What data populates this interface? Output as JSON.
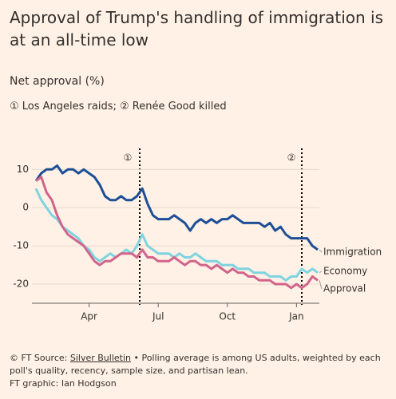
{
  "chart_data": {
    "type": "line",
    "title": "Approval of Trump's handling of immigration is at an all-time low",
    "subtitle": "Net approval (%)",
    "note": "① Los Angeles raids; ② Renée Good killed",
    "markers": [
      "①",
      "②"
    ],
    "categories": [
      null,
      null,
      null,
      null,
      null,
      null,
      null,
      null,
      null,
      null,
      "Apr",
      null,
      null,
      null,
      null,
      null,
      null,
      null,
      null,
      null,
      null,
      null,
      null,
      "Jul",
      null,
      null,
      null,
      null,
      null,
      null,
      null,
      null,
      null,
      null,
      null,
      null,
      "Oct",
      null,
      null,
      null,
      null,
      null,
      null,
      null,
      null,
      null,
      null,
      null,
      null,
      "Jan",
      null,
      null,
      null,
      null
    ],
    "series": [
      {
        "name": "Immigration",
        "color": "#1d4f96",
        "values": [
          7,
          9,
          10,
          10,
          11,
          9,
          10,
          10,
          9,
          10,
          9,
          8,
          6,
          3,
          2,
          2,
          3,
          2,
          2,
          3,
          5,
          1,
          -2,
          -3,
          -3,
          -3,
          -2,
          -3,
          -4,
          -6,
          -4,
          -3,
          -4,
          -3,
          -4,
          -3,
          -3,
          -2,
          -3,
          -4,
          -4,
          -4,
          -4,
          -5,
          -4,
          -6,
          -5,
          -7,
          -8,
          -8,
          -8,
          -8,
          -10,
          -11
        ]
      },
      {
        "name": "Economy",
        "color": "#7fd3df",
        "values": [
          5,
          2,
          0,
          -2,
          -3,
          -5,
          -6,
          -7,
          -8,
          -10,
          -11,
          -13,
          -14,
          -13,
          -12,
          -13,
          -12,
          -11,
          -12,
          -10,
          -7,
          -10,
          -11,
          -12,
          -12,
          -12,
          -13,
          -12,
          -13,
          -13,
          -12,
          -13,
          -14,
          -14,
          -14,
          -15,
          -15,
          -15,
          -16,
          -16,
          -16,
          -17,
          -17,
          -17,
          -18,
          -18,
          -18,
          -19,
          -18,
          -18,
          -16,
          -17,
          -16,
          -17
        ]
      },
      {
        "name": "Approval",
        "color": "#d1648a",
        "values": [
          7,
          8,
          4,
          2,
          -2,
          -5,
          -7,
          -8,
          -9,
          -10,
          -12,
          -14,
          -15,
          -14,
          -14,
          -13,
          -12,
          -12,
          -12,
          -13,
          -11,
          -13,
          -13,
          -14,
          -14,
          -14,
          -13,
          -14,
          -15,
          -14,
          -14,
          -15,
          -15,
          -16,
          -15,
          -16,
          -17,
          -16,
          -17,
          -17,
          -18,
          -18,
          -19,
          -19,
          -19,
          -20,
          -20,
          -20,
          -21,
          -20,
          -21,
          -20,
          -18,
          -19
        ]
      }
    ],
    "ylim": [
      -25,
      15.5
    ],
    "yticks": [
      -20,
      -10,
      0,
      10
    ],
    "grid": true,
    "copyright": "© FT",
    "source_label": "Source:",
    "source": "Silver Bulletin",
    "source_note": "• Polling average is among US adults, weighted by each poll's quality, recency, sample size, and partisan lean.",
    "credit": "FT graphic: Ian Hodgson"
  }
}
